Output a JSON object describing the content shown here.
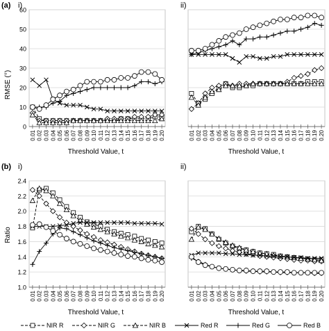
{
  "figure": {
    "panel_row_a": "(a)",
    "panel_row_b": "(b)",
    "sub_i": "i)",
    "sub_ii": "ii)",
    "sub_i_b": "i)",
    "sub_ii_b": "ii)",
    "ylabel_a": "RMSE (°)",
    "ylabel_b": "Ratio",
    "xlabel_a": "Threshold Value, t",
    "xlabel_a2": "Threshold Value, t",
    "xlabel_b": "Threshold Value, t",
    "xlabel_b2": "Threshold Value, t"
  },
  "legend": {
    "items": [
      {
        "label": "NIR R",
        "marker": "square",
        "dash": true
      },
      {
        "label": "NIR G",
        "marker": "diamond",
        "dash": true
      },
      {
        "label": "NIR B",
        "marker": "triangle",
        "dash": true
      },
      {
        "label": "Red R",
        "marker": "x",
        "dash": false
      },
      {
        "label": "Red G",
        "marker": "plus",
        "dash": false
      },
      {
        "label": "Red B",
        "marker": "circle",
        "dash": false
      }
    ]
  },
  "chart_data": [
    {
      "panel": "(a) i)",
      "type": "line",
      "ylabel": "RMSE (°)",
      "xlabel": "Threshold Value, t",
      "ylim": [
        0,
        60
      ],
      "yticks": [
        0,
        10,
        20,
        30,
        40,
        50,
        60
      ],
      "grid": "horizontal",
      "x": [
        "0.01",
        "0.02",
        "0.03",
        "0.04",
        "0.05",
        "0.06",
        "0.07",
        "0.08",
        "0.09",
        "0.10",
        "0.11",
        "0.12",
        "0.13",
        "0.14",
        "0.15",
        "0.16",
        "0.17",
        "0.18",
        "0.19",
        "0.20"
      ],
      "series": [
        {
          "name": "NIR R",
          "values": [
            10,
            4,
            3,
            3,
            3,
            3,
            3,
            3,
            3,
            3,
            3,
            3,
            3,
            4,
            4,
            4,
            4,
            4,
            5,
            5
          ]
        },
        {
          "name": "NIR G",
          "values": [
            7,
            3,
            3,
            3,
            3,
            3,
            3,
            3,
            3,
            3,
            3,
            4,
            4,
            4,
            4,
            5,
            5,
            5,
            6,
            6
          ]
        },
        {
          "name": "NIR B",
          "values": [
            6,
            2,
            2,
            2,
            2,
            2,
            3,
            3,
            3,
            3,
            3,
            3,
            3,
            3,
            3,
            3,
            3,
            3,
            3,
            4
          ]
        },
        {
          "name": "Red R",
          "values": [
            24,
            21,
            24,
            14,
            12,
            11,
            11,
            11,
            10,
            9,
            9,
            8,
            8,
            8,
            8,
            8,
            8,
            8,
            8,
            8
          ]
        },
        {
          "name": "Red G",
          "values": [
            10,
            10,
            10,
            12,
            13,
            16,
            17,
            18,
            19,
            20,
            20,
            20,
            20,
            20,
            20,
            21,
            23,
            23,
            22,
            23
          ]
        },
        {
          "name": "Red B",
          "values": [
            10,
            9,
            11,
            14,
            16,
            18,
            19,
            21,
            23,
            23,
            23,
            24,
            24,
            25,
            25,
            26,
            28,
            28,
            27,
            24
          ]
        }
      ]
    },
    {
      "panel": "(a) ii)",
      "type": "line",
      "xlabel": "Threshold Value, t",
      "ylim": [
        0,
        60
      ],
      "grid": "horizontal",
      "x": [
        "0.01",
        "0.02",
        "0.03",
        "0.04",
        "0.05",
        "0.06",
        "0.07",
        "0.08",
        "0.09",
        "0.10",
        "0.11",
        "0.12",
        "0.13",
        "0.14",
        "0.15",
        "0.16",
        "0.17",
        "0.18",
        "0.19",
        "0.20"
      ],
      "series": [
        {
          "name": "NIR R",
          "values": [
            17,
            12,
            14,
            17,
            20,
            22,
            20,
            20,
            21,
            21,
            22,
            22,
            22,
            22,
            22,
            22,
            22,
            23,
            23,
            23
          ]
        },
        {
          "name": "NIR G",
          "values": [
            9,
            12,
            17,
            20,
            21,
            22,
            21,
            22,
            22,
            22,
            22,
            22,
            22,
            22,
            23,
            25,
            26,
            27,
            29,
            30
          ]
        },
        {
          "name": "NIR B",
          "values": [
            15,
            11,
            15,
            18,
            19,
            21,
            21,
            21,
            21,
            22,
            22,
            22,
            22,
            22,
            22,
            22,
            22,
            22,
            22,
            22
          ]
        },
        {
          "name": "Red R",
          "values": [
            37,
            37,
            37,
            37,
            37,
            37,
            35,
            33,
            36,
            36,
            35,
            35,
            36,
            36,
            37,
            37,
            37,
            37,
            37,
            37
          ]
        },
        {
          "name": "Red G",
          "values": [
            37,
            38,
            39,
            40,
            41,
            42,
            44,
            42,
            45,
            45,
            46,
            46,
            47,
            48,
            49,
            49,
            50,
            51,
            53,
            52
          ]
        },
        {
          "name": "Red B",
          "values": [
            39,
            39,
            40,
            42,
            44,
            46,
            47,
            48,
            50,
            51,
            52,
            53,
            54,
            55,
            55,
            56,
            56,
            57,
            57,
            56
          ]
        }
      ]
    },
    {
      "panel": "(b) i)",
      "type": "line",
      "ylabel": "Ratio",
      "xlabel": "Threshold Value, t",
      "ylim": [
        1.0,
        2.4
      ],
      "yticks": [
        1.0,
        1.2,
        1.4,
        1.6,
        1.8,
        2.0,
        2.2,
        2.4
      ],
      "grid": "horizontal",
      "x": [
        "0.01",
        "0.02",
        "0.03",
        "0.04",
        "0.05",
        "0.06",
        "0.07",
        "0.08",
        "0.09",
        "0.10",
        "0.11",
        "0.12",
        "0.13",
        "0.14",
        "0.15",
        "0.16",
        "0.17",
        "0.18",
        "0.19",
        "0.20"
      ],
      "series": [
        {
          "name": "NIR R",
          "values": [
            1.78,
            2.28,
            2.3,
            2.24,
            2.15,
            2.06,
            1.98,
            1.92,
            1.86,
            1.83,
            1.8,
            1.76,
            1.73,
            1.71,
            1.69,
            1.67,
            1.64,
            1.62,
            1.6,
            1.58
          ]
        },
        {
          "name": "NIR G",
          "values": [
            2.28,
            2.2,
            2.1,
            2.0,
            1.92,
            1.85,
            1.8,
            1.75,
            1.7,
            1.66,
            1.62,
            1.59,
            1.56,
            1.53,
            1.5,
            1.47,
            1.44,
            1.42,
            1.4,
            1.38
          ]
        },
        {
          "name": "NIR B",
          "values": [
            2.14,
            2.3,
            2.27,
            2.2,
            2.1,
            2.02,
            1.94,
            1.88,
            1.83,
            1.79,
            1.76,
            1.73,
            1.7,
            1.67,
            1.65,
            1.62,
            1.6,
            1.57,
            1.55,
            1.53
          ]
        },
        {
          "name": "Red R",
          "values": [
            1.8,
            1.8,
            1.8,
            1.8,
            1.81,
            1.82,
            1.84,
            1.85,
            1.85,
            1.85,
            1.85,
            1.85,
            1.85,
            1.85,
            1.85,
            1.84,
            1.84,
            1.84,
            1.84,
            1.83
          ]
        },
        {
          "name": "Red G",
          "values": [
            1.3,
            1.47,
            1.58,
            1.7,
            1.78,
            1.77,
            1.73,
            1.69,
            1.65,
            1.61,
            1.58,
            1.55,
            1.52,
            1.5,
            1.48,
            1.46,
            1.44,
            1.42,
            1.4,
            1.38
          ]
        },
        {
          "name": "Red B",
          "values": [
            1.82,
            1.83,
            1.79,
            1.74,
            1.69,
            1.64,
            1.6,
            1.57,
            1.54,
            1.51,
            1.49,
            1.47,
            1.45,
            1.43,
            1.41,
            1.4,
            1.38,
            1.36,
            1.35,
            1.33
          ]
        }
      ]
    },
    {
      "panel": "(b) ii)",
      "type": "line",
      "xlabel": "Threshold Value, t",
      "ylim": [
        1.0,
        2.4
      ],
      "grid": "horizontal",
      "x": [
        "0.01",
        "0.02",
        "0.03",
        "0.04",
        "0.05",
        "0.06",
        "0.07",
        "0.08",
        "0.09",
        "0.10",
        "0.11",
        "0.12",
        "0.13",
        "0.14",
        "0.15",
        "0.16",
        "0.17",
        "0.18",
        "0.19",
        "0.20"
      ],
      "series": [
        {
          "name": "NIR R",
          "values": [
            1.73,
            1.8,
            1.77,
            1.7,
            1.63,
            1.58,
            1.54,
            1.51,
            1.49,
            1.47,
            1.45,
            1.44,
            1.43,
            1.41,
            1.4,
            1.39,
            1.38,
            1.37,
            1.36,
            1.36
          ]
        },
        {
          "name": "NIR G",
          "values": [
            1.77,
            1.7,
            1.63,
            1.58,
            1.54,
            1.51,
            1.48,
            1.46,
            1.44,
            1.43,
            1.41,
            1.4,
            1.39,
            1.38,
            1.37,
            1.36,
            1.35,
            1.35,
            1.34,
            1.34
          ]
        },
        {
          "name": "NIR B",
          "values": [
            1.63,
            1.79,
            1.76,
            1.7,
            1.64,
            1.59,
            1.55,
            1.52,
            1.49,
            1.47,
            1.45,
            1.44,
            1.42,
            1.41,
            1.4,
            1.39,
            1.38,
            1.37,
            1.36,
            1.35
          ]
        },
        {
          "name": "Red R",
          "values": [
            1.42,
            1.45,
            1.45,
            1.45,
            1.45,
            1.44,
            1.44,
            1.43,
            1.43,
            1.42,
            1.42,
            1.41,
            1.41,
            1.4,
            1.4,
            1.39,
            1.39,
            1.38,
            1.38,
            1.38
          ]
        },
        {
          "name": "Red G",
          "values": [
            1.38,
            1.34,
            1.3,
            1.27,
            1.25,
            1.24,
            1.23,
            1.22,
            1.21,
            1.21,
            1.2,
            1.2,
            1.2,
            1.19,
            1.19,
            1.19,
            1.19,
            1.19,
            1.18,
            1.18
          ]
        },
        {
          "name": "Red B",
          "values": [
            1.4,
            1.33,
            1.29,
            1.27,
            1.25,
            1.24,
            1.23,
            1.22,
            1.22,
            1.21,
            1.21,
            1.21,
            1.2,
            1.2,
            1.2,
            1.19,
            1.19,
            1.19,
            1.19,
            1.19
          ]
        }
      ]
    }
  ]
}
